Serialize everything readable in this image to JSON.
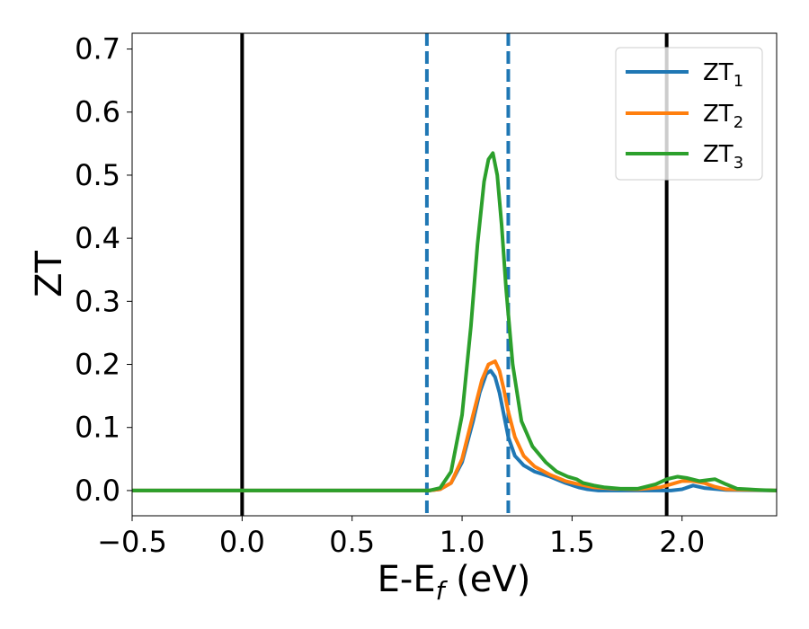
{
  "chart_data": {
    "type": "line",
    "title": "",
    "xlabel": "E-E",
    "xlabel_sub": "f",
    "xlabel_unit": " (eV)",
    "ylabel": "ZT",
    "xlim": [
      -0.5,
      2.43
    ],
    "ylim": [
      -0.04,
      0.725
    ],
    "xticks": [
      -0.5,
      0.0,
      0.5,
      1.0,
      1.5,
      2.0
    ],
    "xtick_labels": [
      "−0.5",
      "0.0",
      "0.5",
      "1.0",
      "1.5",
      "2.0"
    ],
    "yticks": [
      0.0,
      0.1,
      0.2,
      0.3,
      0.4,
      0.5,
      0.6,
      0.7
    ],
    "ytick_labels": [
      "0.0",
      "0.1",
      "0.2",
      "0.3",
      "0.4",
      "0.5",
      "0.6",
      "0.7"
    ],
    "grid": false,
    "legend_position": "top-right",
    "reference_lines": [
      {
        "x": 0.0,
        "style": "solid",
        "color": "#000000"
      },
      {
        "x": 1.93,
        "style": "solid",
        "color": "#000000"
      },
      {
        "x": 0.84,
        "style": "dashed",
        "color": "#1f77b4"
      },
      {
        "x": 1.21,
        "style": "dashed",
        "color": "#1f77b4"
      }
    ],
    "series": [
      {
        "name": "ZT",
        "name_sub": "1",
        "color": "#1f77b4",
        "x": [
          -0.5,
          0.85,
          0.9,
          0.95,
          1.0,
          1.05,
          1.08,
          1.11,
          1.13,
          1.15,
          1.17,
          1.19,
          1.21,
          1.24,
          1.28,
          1.33,
          1.4,
          1.47,
          1.53,
          1.57,
          1.62,
          1.7,
          1.8,
          1.9,
          1.95,
          2.0,
          2.05,
          2.1,
          2.2,
          2.43
        ],
        "y": [
          0.0,
          0.0,
          0.002,
          0.012,
          0.045,
          0.11,
          0.155,
          0.185,
          0.19,
          0.18,
          0.155,
          0.12,
          0.085,
          0.055,
          0.04,
          0.03,
          0.022,
          0.012,
          0.005,
          0.002,
          0.0,
          0.0,
          0.0,
          0.0,
          0.0,
          0.002,
          0.008,
          0.004,
          0.001,
          0.0
        ]
      },
      {
        "name": "ZT",
        "name_sub": "2",
        "color": "#ff7f0e",
        "x": [
          -0.5,
          0.85,
          0.9,
          0.95,
          1.0,
          1.05,
          1.09,
          1.12,
          1.15,
          1.17,
          1.19,
          1.21,
          1.24,
          1.28,
          1.33,
          1.4,
          1.47,
          1.53,
          1.6,
          1.7,
          1.8,
          1.9,
          1.95,
          2.0,
          2.05,
          2.1,
          2.15,
          2.2,
          2.43
        ],
        "y": [
          0.0,
          0.0,
          0.002,
          0.012,
          0.05,
          0.12,
          0.175,
          0.2,
          0.205,
          0.19,
          0.16,
          0.125,
          0.085,
          0.055,
          0.038,
          0.025,
          0.015,
          0.01,
          0.005,
          0.003,
          0.002,
          0.005,
          0.01,
          0.015,
          0.015,
          0.012,
          0.006,
          0.002,
          0.0
        ]
      },
      {
        "name": "ZT",
        "name_sub": "3",
        "color": "#2ca02c",
        "x": [
          -0.5,
          0.85,
          0.9,
          0.95,
          1.0,
          1.04,
          1.07,
          1.1,
          1.12,
          1.14,
          1.16,
          1.18,
          1.2,
          1.23,
          1.27,
          1.32,
          1.38,
          1.43,
          1.48,
          1.52,
          1.55,
          1.6,
          1.65,
          1.72,
          1.8,
          1.88,
          1.93,
          1.98,
          2.02,
          2.08,
          2.15,
          2.2,
          2.25,
          2.3,
          2.35,
          2.43
        ],
        "y": [
          0.0,
          0.0,
          0.004,
          0.03,
          0.12,
          0.26,
          0.39,
          0.49,
          0.525,
          0.535,
          0.5,
          0.42,
          0.32,
          0.2,
          0.11,
          0.07,
          0.045,
          0.03,
          0.022,
          0.018,
          0.012,
          0.008,
          0.005,
          0.003,
          0.003,
          0.01,
          0.018,
          0.022,
          0.02,
          0.015,
          0.018,
          0.01,
          0.003,
          0.002,
          0.001,
          0.0
        ]
      }
    ]
  }
}
